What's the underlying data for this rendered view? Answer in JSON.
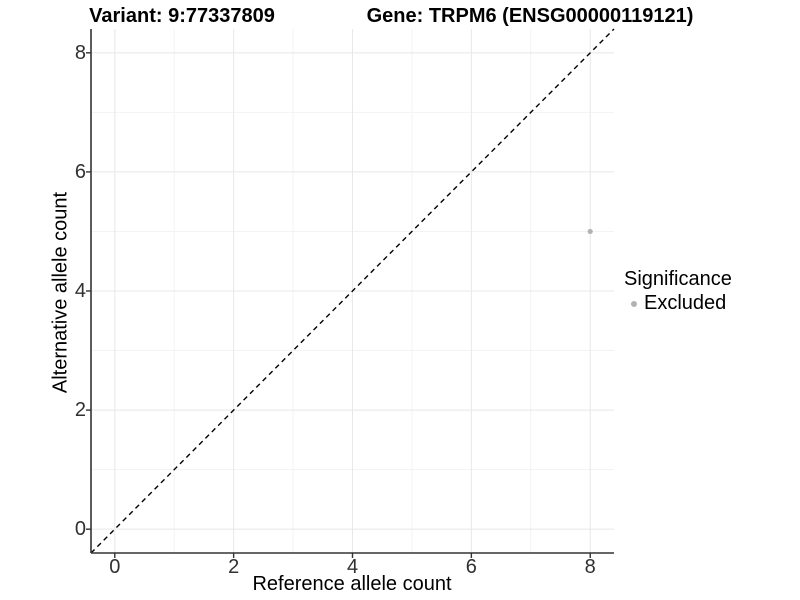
{
  "titles": {
    "variant": "Variant: 9:77337809",
    "gene": "Gene: TRPM6 (ENSG00000119121)"
  },
  "axes": {
    "x_label": "Reference allele count",
    "y_label": "Alternative allele count"
  },
  "legend": {
    "title": "Significance",
    "items": [
      {
        "label": "Excluded",
        "color": "#b3b3b3"
      }
    ]
  },
  "colors": {
    "background": "#ffffff",
    "axis_line": "#333333",
    "major_grid": "#e8e8e8",
    "minor_grid": "#f3f3f3",
    "tick_text": "#303030",
    "point": "#b3b3b3",
    "reference_line": "#000000"
  },
  "chart_data": {
    "type": "scatter",
    "title": "Variant: 9:77337809 — Gene: TRPM6 (ENSG00000119121)",
    "xlabel": "Reference allele count",
    "ylabel": "Alternative allele count",
    "xlim": [
      -0.4,
      8.4
    ],
    "ylim": [
      -0.4,
      8.4
    ],
    "x_ticks": [
      0,
      2,
      4,
      6,
      8
    ],
    "y_ticks": [
      0,
      2,
      4,
      6,
      8
    ],
    "x_minor_ticks": [
      1,
      3,
      5,
      7
    ],
    "y_minor_ticks": [
      1,
      3,
      5,
      7
    ],
    "grid": true,
    "legend_position": "right",
    "series": [
      {
        "name": "Excluded",
        "color": "#b3b3b3",
        "point_radius": 2.6,
        "points": [
          {
            "x": 8,
            "y": 5
          }
        ]
      }
    ],
    "reference_line": {
      "type": "identity",
      "from": {
        "x": -0.4,
        "y": -0.4
      },
      "to": {
        "x": 8.4,
        "y": 8.4
      },
      "style": "dashed",
      "color": "#000000"
    }
  }
}
